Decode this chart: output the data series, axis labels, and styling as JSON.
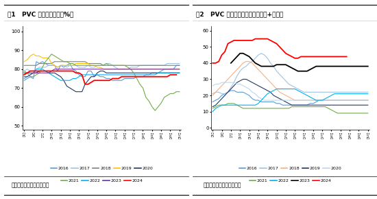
{
  "fig1_title": "图1   PVC 周度开工回升（%）",
  "fig2_title": "图2   PVC 样本仓库库存高位（华南+华东）",
  "source_text": "资料来源：卓创，正信期货",
  "fig1_ylabel_vals": [
    50,
    60,
    70,
    80,
    90,
    100
  ],
  "fig1_ylim": [
    48,
    103
  ],
  "fig2_ylabel_vals": [
    0,
    10,
    20,
    30,
    40,
    50,
    60
  ],
  "fig2_ylim": [
    -1,
    63
  ],
  "x_ticks": [
    "第1周",
    "第4周",
    "第7周",
    "第10周",
    "第13周",
    "第16周",
    "第19周",
    "第22周",
    "第25周",
    "第28周",
    "第31周",
    "第34周",
    "第37周",
    "第40周",
    "第43周",
    "第46周",
    "第49周",
    "第52周"
  ],
  "x_tick_indices": [
    0,
    3,
    6,
    9,
    12,
    15,
    18,
    21,
    24,
    27,
    30,
    33,
    36,
    39,
    42,
    45,
    48,
    51
  ],
  "fig1_legend_row1": [
    "2016",
    "2017",
    "2018",
    "2019",
    "2020"
  ],
  "fig1_legend_row2": [
    "2021",
    "2022",
    "2023",
    "2024"
  ],
  "fig1_colors": [
    "#5B9BD5",
    "#9DC3E6",
    "#808080",
    "#FFC000",
    "#203864",
    "#70AD47",
    "#00B0F0",
    "#7030A0",
    "#FF0000"
  ],
  "fig2_legend_row1": [
    "2016",
    "2017",
    "2018",
    "2019",
    "2020"
  ],
  "fig2_legend_row2": [
    "2021",
    "2022",
    "2023",
    "2024"
  ],
  "fig2_colors": [
    "#5B9BD5",
    "#9DC3E6",
    "#F4B183",
    "#203864",
    "#BDD7EE",
    "#70AD47",
    "#00B0F0",
    "#000000",
    "#FF0000"
  ],
  "fig1_data": {
    "2016": [
      74,
      75,
      76,
      75,
      84,
      83,
      84,
      83,
      82,
      82,
      82,
      79,
      82,
      81,
      82,
      83,
      80,
      79,
      77,
      76,
      76,
      79,
      79,
      76,
      77,
      76,
      76,
      75,
      75,
      74,
      74,
      74,
      74,
      75,
      75,
      75,
      75,
      76,
      76,
      76,
      77,
      77,
      78,
      78,
      78,
      79,
      80,
      80,
      80,
      80,
      82,
      82
    ],
    "2017": [
      79,
      80,
      79,
      79,
      80,
      81,
      81,
      81,
      82,
      82,
      82,
      81,
      82,
      82,
      81,
      82,
      82,
      82,
      81,
      81,
      81,
      82,
      81,
      81,
      82,
      82,
      82,
      83,
      83,
      82,
      81,
      80,
      80,
      80,
      80,
      81,
      81,
      81,
      82,
      82,
      82,
      82,
      82,
      82,
      82,
      82,
      82,
      83,
      83,
      83,
      83,
      83
    ],
    "2018": [
      82,
      82,
      82,
      82,
      82,
      83,
      83,
      83,
      83,
      83,
      84,
      84,
      84,
      84,
      84,
      84,
      84,
      84,
      84,
      84,
      84,
      83,
      83,
      83,
      83,
      83,
      82,
      82,
      82,
      82,
      82,
      82,
      82,
      82,
      82,
      82,
      82,
      82,
      82,
      82,
      82,
      82,
      82,
      82,
      82,
      82,
      82,
      82,
      82,
      82,
      82,
      82
    ],
    "2019": [
      84,
      85,
      87,
      88,
      87,
      87,
      86,
      86,
      86,
      83,
      82,
      81,
      82,
      82,
      82,
      82,
      82,
      83,
      83,
      83,
      83,
      83,
      82,
      82,
      81,
      81,
      80,
      80,
      80,
      80,
      80,
      80,
      80,
      80,
      80,
      80,
      80,
      80,
      80,
      80,
      80,
      80,
      80,
      80,
      80,
      80,
      80,
      80,
      80,
      80,
      80,
      80
    ],
    "2020": [
      78,
      78,
      78,
      78,
      78,
      79,
      79,
      79,
      78,
      78,
      78,
      77,
      76,
      74,
      71,
      70,
      69,
      68,
      68,
      68,
      72,
      74,
      76,
      76,
      78,
      79,
      79,
      78,
      78,
      78,
      78,
      78,
      78,
      78,
      78,
      78,
      78,
      78,
      78,
      78,
      78,
      78,
      78,
      78,
      78,
      78,
      78,
      78,
      78,
      78,
      78,
      78
    ],
    "2021": [
      79,
      78,
      76,
      76,
      77,
      78,
      81,
      84,
      86,
      88,
      87,
      86,
      85,
      84,
      84,
      83,
      83,
      82,
      82,
      82,
      82,
      82,
      82,
      82,
      82,
      82,
      82,
      83,
      82,
      82,
      82,
      82,
      82,
      82,
      81,
      80,
      78,
      75,
      72,
      70,
      65,
      63,
      60,
      58,
      60,
      62,
      65,
      66,
      67,
      67,
      68,
      68
    ],
    "2022": [
      75,
      76,
      77,
      78,
      80,
      80,
      80,
      79,
      78,
      77,
      76,
      75,
      74,
      74,
      74,
      74,
      75,
      75,
      76,
      77,
      77,
      77,
      77,
      77,
      77,
      77,
      77,
      77,
      77,
      77,
      77,
      77,
      77,
      77,
      77,
      77,
      77,
      77,
      77,
      77,
      77,
      77,
      77,
      77,
      78,
      78,
      78,
      78,
      78,
      78,
      78,
      78
    ],
    "2023": [
      76,
      76,
      77,
      78,
      78,
      78,
      78,
      78,
      78,
      79,
      80,
      80,
      80,
      80,
      80,
      80,
      80,
      80,
      80,
      80,
      80,
      80,
      80,
      80,
      80,
      80,
      80,
      80,
      80,
      80,
      80,
      80,
      80,
      80,
      80,
      80,
      80,
      80,
      80,
      80,
      80,
      80,
      80,
      80,
      80,
      80,
      80,
      80,
      80,
      80,
      80,
      80
    ],
    "2024": [
      77,
      78,
      79,
      79,
      79,
      79,
      79,
      79,
      79,
      79,
      79,
      79,
      79,
      79,
      79,
      79,
      79,
      78,
      78,
      77,
      72,
      72,
      73,
      74,
      74,
      74,
      74,
      74,
      74,
      75,
      75,
      75,
      76,
      76,
      76,
      76,
      76,
      76,
      76,
      76,
      76,
      76,
      76,
      76,
      76,
      76,
      76,
      76,
      77,
      77,
      77,
      null
    ]
  },
  "fig2_data": {
    "2016": [
      16,
      17,
      18,
      20,
      21,
      22,
      23,
      23,
      22,
      22,
      22,
      21,
      20,
      18,
      17,
      17,
      16,
      16,
      16,
      16,
      16,
      15,
      15,
      14,
      14,
      14,
      14,
      14,
      14,
      14,
      14,
      14,
      15,
      15,
      16,
      17,
      17,
      17,
      17,
      17,
      17,
      17,
      17,
      17,
      17,
      17,
      17,
      17,
      17,
      17,
      17,
      17
    ],
    "2017": [
      21,
      22,
      22,
      21,
      21,
      22,
      25,
      28,
      32,
      35,
      37,
      38,
      40,
      41,
      43,
      45,
      46,
      45,
      43,
      40,
      38,
      35,
      33,
      31,
      29,
      27,
      26,
      25,
      24,
      23,
      22,
      22,
      22,
      22,
      22,
      22,
      22,
      22,
      22,
      22,
      22,
      22,
      22,
      22,
      22,
      22,
      22,
      22,
      22,
      22,
      22,
      22
    ],
    "2018": [
      20,
      22,
      24,
      26,
      28,
      30,
      32,
      34,
      36,
      38,
      40,
      41,
      41,
      40,
      38,
      36,
      34,
      32,
      30,
      28,
      26,
      24,
      22,
      21,
      20,
      19,
      18,
      17,
      17,
      17,
      17,
      17,
      17,
      17,
      17,
      17,
      17,
      17,
      17,
      17,
      17,
      17,
      17,
      17,
      17,
      17,
      17,
      17,
      17,
      17,
      17,
      17
    ],
    "2019": [
      13,
      14,
      16,
      18,
      20,
      22,
      24,
      26,
      28,
      29,
      30,
      30,
      29,
      28,
      27,
      26,
      25,
      24,
      23,
      22,
      20,
      19,
      18,
      17,
      16,
      15,
      14,
      14,
      14,
      14,
      14,
      14,
      14,
      14,
      14,
      14,
      14,
      14,
      14,
      14,
      14,
      14,
      14,
      14,
      14,
      14,
      14,
      14,
      14,
      14,
      14,
      14
    ],
    "2020": [
      26,
      27,
      27,
      28,
      28,
      28,
      28,
      28,
      27,
      27,
      26,
      25,
      24,
      22,
      21,
      19,
      18,
      17,
      17,
      17,
      17,
      17,
      17,
      17,
      17,
      17,
      17,
      17,
      17,
      17,
      17,
      17,
      17,
      17,
      17,
      17,
      17,
      17,
      17,
      17,
      17,
      17,
      17,
      17,
      17,
      17,
      17,
      17,
      17,
      17,
      17,
      17
    ],
    "2021": [
      12,
      13,
      14,
      14,
      14,
      15,
      15,
      15,
      14,
      13,
      12,
      12,
      12,
      12,
      12,
      12,
      12,
      12,
      12,
      12,
      12,
      12,
      12,
      12,
      12,
      12,
      13,
      13,
      13,
      13,
      13,
      13,
      13,
      13,
      13,
      13,
      13,
      13,
      12,
      11,
      10,
      9,
      9,
      9,
      9,
      9,
      9,
      9,
      9,
      9,
      9,
      9
    ],
    "2022": [
      10,
      12,
      13,
      14,
      14,
      14,
      14,
      14,
      14,
      14,
      14,
      14,
      14,
      14,
      14,
      15,
      17,
      19,
      21,
      22,
      23,
      24,
      24,
      24,
      24,
      24,
      24,
      24,
      23,
      22,
      21,
      20,
      19,
      18,
      17,
      17,
      17,
      18,
      19,
      20,
      21,
      21,
      21,
      21,
      21,
      21,
      21,
      21,
      21,
      21,
      21,
      21
    ],
    "2023": [
      null,
      null,
      null,
      null,
      null,
      null,
      40,
      42,
      44,
      46,
      46,
      45,
      44,
      42,
      40,
      39,
      38,
      38,
      38,
      38,
      38,
      39,
      39,
      39,
      39,
      38,
      37,
      36,
      35,
      35,
      35,
      35,
      36,
      37,
      38,
      38,
      38,
      38,
      38,
      38,
      38,
      38,
      38,
      38,
      38,
      38,
      38,
      38,
      38,
      38,
      38,
      38
    ],
    "2024": [
      40,
      40,
      41,
      45,
      47,
      52,
      53,
      54,
      54,
      54,
      54,
      54,
      54,
      54,
      55,
      55,
      55,
      55,
      55,
      54,
      53,
      52,
      50,
      48,
      46,
      45,
      44,
      43,
      43,
      44,
      44,
      44,
      44,
      44,
      44,
      44,
      44,
      44,
      44,
      44,
      44,
      44,
      44,
      44,
      44,
      null,
      null,
      null,
      null,
      null,
      null,
      null
    ]
  }
}
